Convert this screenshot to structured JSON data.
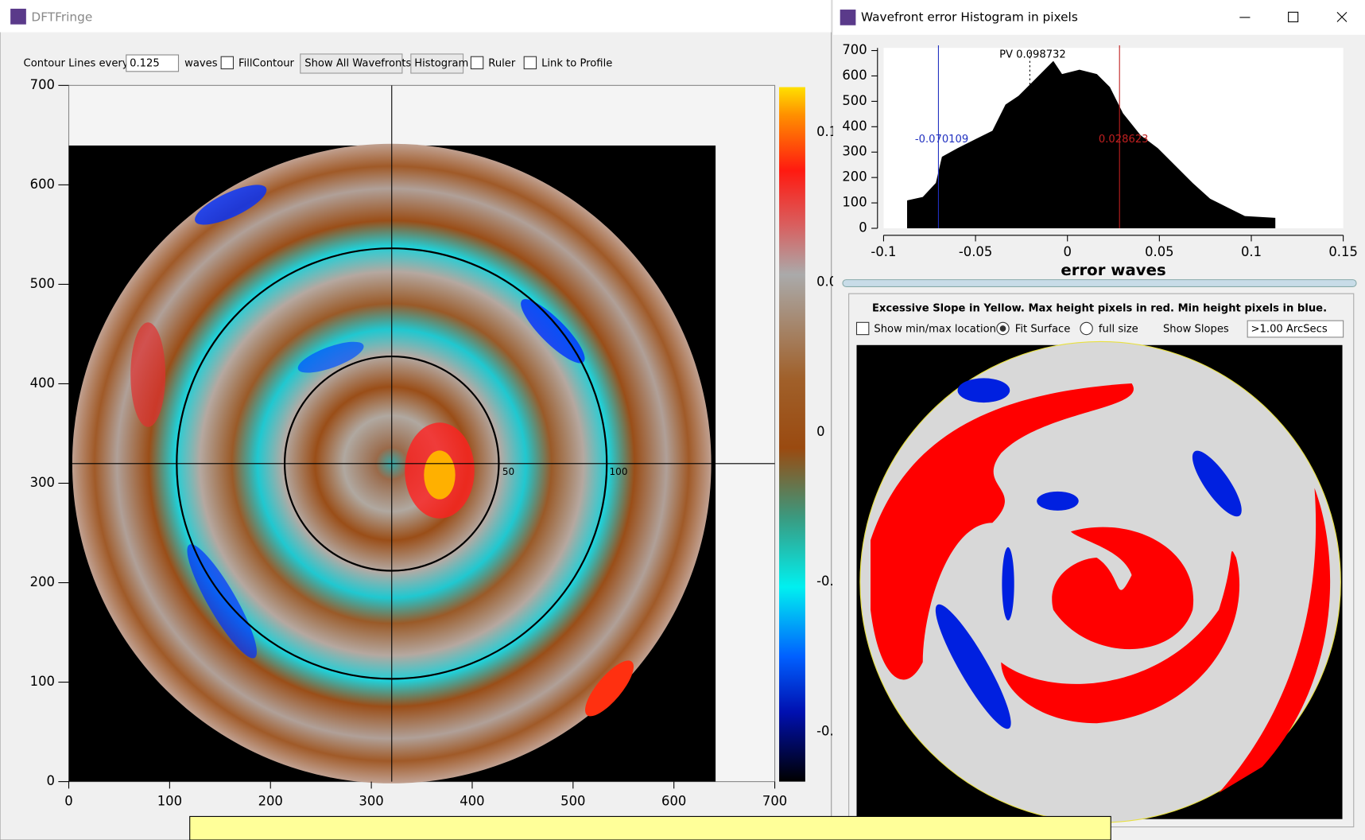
{
  "main_window": {
    "title": "DFTFringe",
    "toolbar": {
      "contour_label": "Contour Lines every",
      "contour_value": "0.125",
      "waves": "waves",
      "fill_contour": "FillContour",
      "show_all": "Show All Wavefronts",
      "histogram": "Histogram",
      "ruler": "Ruler",
      "link": "Link to Profile"
    },
    "plot": {
      "xlim": [
        0,
        700
      ],
      "ylim": [
        0,
        700
      ],
      "xticks": [
        0,
        100,
        200,
        300,
        400,
        500,
        600,
        700
      ],
      "yticks": [
        0,
        100,
        200,
        300,
        400,
        500,
        600,
        700
      ],
      "ruler_labels": [
        "50",
        "100"
      ],
      "colorbar_labels": [
        "0.1",
        "0.0",
        "0",
        "-0.",
        "-0."
      ]
    }
  },
  "histogram_window": {
    "title": "Wavefront error Histogram in pixels",
    "xlim": [
      -0.1,
      0.15
    ],
    "ylim": [
      0,
      700
    ],
    "xticks": [
      -0.1,
      -0.05,
      0,
      0.05,
      0.1,
      0.15
    ],
    "yticks": [
      0,
      100,
      200,
      300,
      400,
      500,
      600,
      700
    ],
    "xlabel": "error waves",
    "pv_label": "PV 0.098732",
    "min_label": "-0.070109",
    "max_label": "0.028623"
  },
  "slope_panel": {
    "heading": "Excessive Slope in Yellow. Max height pixels in red. Min height pixels in blue.",
    "show_minmax": "Show min/max location",
    "fit_surface": "Fit Surface",
    "full_size": "full size",
    "show_slopes": "Show Slopes",
    "threshold": ">1.00 ArcSecs"
  }
}
